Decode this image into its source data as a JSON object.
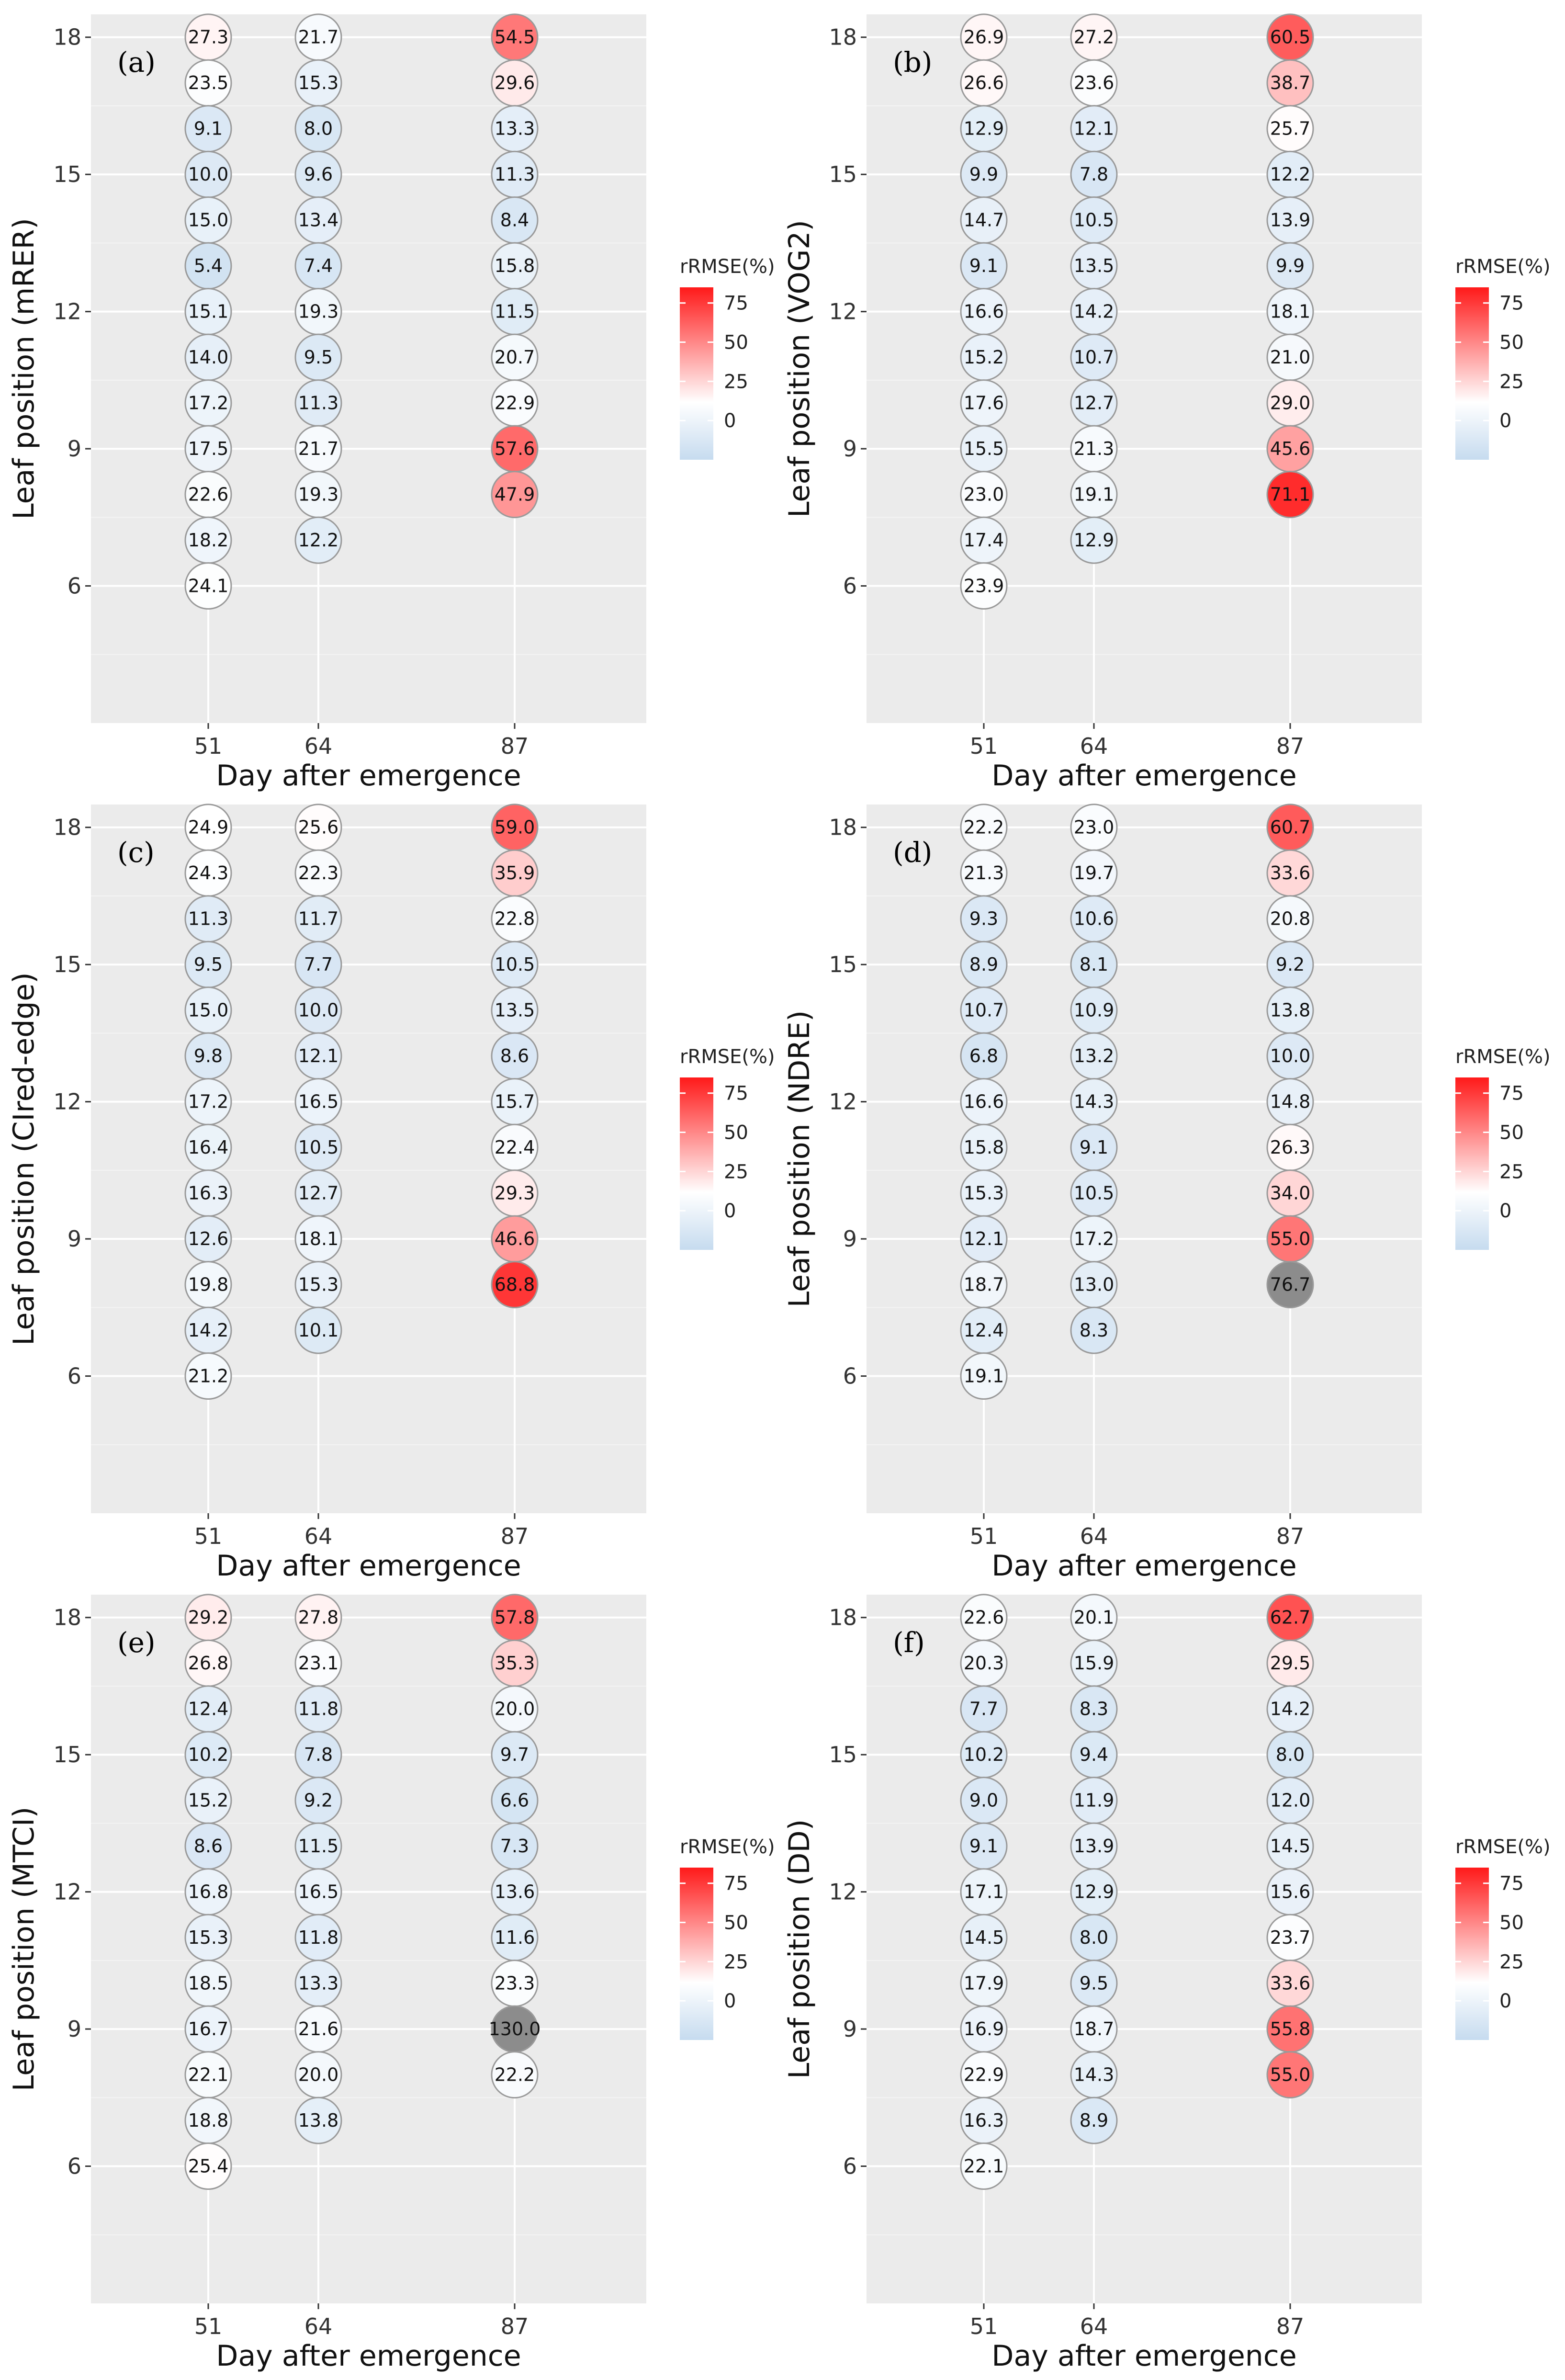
{
  "figure": {
    "common": {
      "xlabel": "Day after emergence",
      "legend_title": "rRMSE(%)",
      "legend_ticks": [
        0,
        25,
        50,
        75
      ],
      "legend_tick_labels": [
        "0",
        "25",
        "50",
        "75"
      ],
      "x_tick_labels": [
        "51",
        "64",
        "87"
      ],
      "y_tick_labels": [
        "6",
        "9",
        "12",
        "15",
        "18"
      ]
    },
    "colors": {
      "panel_bg": "#ebebeb",
      "grid_major": "#ffffff",
      "low": "#c6dbef",
      "mid": "#ffffff",
      "high": "#ff1a1a",
      "out_of_range": "#8c8c8c",
      "bubble_stroke": "#9a9a9a"
    }
  },
  "chart_data": [
    {
      "type": "scatter",
      "panel": "(a)",
      "ylabel": "Leaf position (mRER)",
      "x": [
        51,
        64,
        87
      ],
      "ylim": [
        3,
        18.5
      ],
      "color_scale": [
        0,
        75
      ],
      "series": [
        {
          "name": "51",
          "leaf": [
            18,
            17,
            16,
            15,
            14,
            13,
            12,
            11,
            10,
            9,
            8,
            7,
            6
          ],
          "rrmse": [
            27.3,
            23.5,
            9.1,
            10.0,
            15.0,
            5.4,
            15.1,
            14.0,
            17.2,
            17.5,
            22.6,
            18.2,
            24.1
          ]
        },
        {
          "name": "64",
          "leaf": [
            18,
            17,
            16,
            15,
            14,
            13,
            12,
            11,
            10,
            9,
            8,
            7
          ],
          "rrmse": [
            21.7,
            15.3,
            8.0,
            9.6,
            13.4,
            7.4,
            19.3,
            9.5,
            11.3,
            21.7,
            19.3,
            12.2
          ]
        },
        {
          "name": "87",
          "leaf": [
            18,
            17,
            16,
            15,
            14,
            13,
            12,
            11,
            10,
            9,
            8
          ],
          "rrmse": [
            54.5,
            29.6,
            13.3,
            11.3,
            8.4,
            15.8,
            11.5,
            20.7,
            22.9,
            57.6,
            47.9
          ]
        }
      ]
    },
    {
      "type": "scatter",
      "panel": "(b)",
      "ylabel": "Leaf position (VOG2)",
      "x": [
        51,
        64,
        87
      ],
      "ylim": [
        3,
        18.5
      ],
      "color_scale": [
        0,
        75
      ],
      "series": [
        {
          "name": "51",
          "leaf": [
            18,
            17,
            16,
            15,
            14,
            13,
            12,
            11,
            10,
            9,
            8,
            7,
            6
          ],
          "rrmse": [
            26.9,
            26.6,
            12.9,
            9.9,
            14.7,
            9.1,
            16.6,
            15.2,
            17.6,
            15.5,
            23.0,
            17.4,
            23.9
          ]
        },
        {
          "name": "64",
          "leaf": [
            18,
            17,
            16,
            15,
            14,
            13,
            12,
            11,
            10,
            9,
            8,
            7
          ],
          "rrmse": [
            27.2,
            23.6,
            12.1,
            7.8,
            10.5,
            13.5,
            14.2,
            10.7,
            12.7,
            21.3,
            19.1,
            12.9
          ]
        },
        {
          "name": "87",
          "leaf": [
            18,
            17,
            16,
            15,
            14,
            13,
            12,
            11,
            10,
            9,
            8
          ],
          "rrmse": [
            60.5,
            38.7,
            25.7,
            12.2,
            13.9,
            9.9,
            18.1,
            21.0,
            29.0,
            45.6,
            71.1
          ]
        }
      ]
    },
    {
      "type": "scatter",
      "panel": "(c)",
      "ylabel": "Leaf position (CIred-edge)",
      "x": [
        51,
        64,
        87
      ],
      "ylim": [
        3,
        18.5
      ],
      "color_scale": [
        0,
        75
      ],
      "series": [
        {
          "name": "51",
          "leaf": [
            18,
            17,
            16,
            15,
            14,
            13,
            12,
            11,
            10,
            9,
            8,
            7,
            6
          ],
          "rrmse": [
            24.9,
            24.3,
            11.3,
            9.5,
            15.0,
            9.8,
            17.2,
            16.4,
            16.3,
            12.6,
            19.8,
            14.2,
            21.2
          ]
        },
        {
          "name": "64",
          "leaf": [
            18,
            17,
            16,
            15,
            14,
            13,
            12,
            11,
            10,
            9,
            8,
            7
          ],
          "rrmse": [
            25.6,
            22.3,
            11.7,
            7.7,
            10.0,
            12.1,
            16.5,
            10.5,
            12.7,
            18.1,
            15.3,
            10.1
          ]
        },
        {
          "name": "87",
          "leaf": [
            18,
            17,
            16,
            15,
            14,
            13,
            12,
            11,
            10,
            9,
            8
          ],
          "rrmse": [
            59.0,
            35.9,
            22.8,
            10.5,
            13.5,
            8.6,
            15.7,
            22.4,
            29.3,
            46.6,
            68.8
          ]
        }
      ]
    },
    {
      "type": "scatter",
      "panel": "(d)",
      "ylabel": "Leaf position (NDRE)",
      "x": [
        51,
        64,
        87
      ],
      "ylim": [
        3,
        18.5
      ],
      "color_scale": [
        0,
        75
      ],
      "series": [
        {
          "name": "51",
          "leaf": [
            18,
            17,
            16,
            15,
            14,
            13,
            12,
            11,
            10,
            9,
            8,
            7,
            6
          ],
          "rrmse": [
            22.2,
            21.3,
            9.3,
            8.9,
            10.7,
            6.8,
            16.6,
            15.8,
            15.3,
            12.1,
            18.7,
            12.4,
            19.1
          ]
        },
        {
          "name": "64",
          "leaf": [
            18,
            17,
            16,
            15,
            14,
            13,
            12,
            11,
            10,
            9,
            8,
            7
          ],
          "rrmse": [
            23.0,
            19.7,
            10.6,
            8.1,
            10.9,
            13.2,
            14.3,
            9.1,
            10.5,
            17.2,
            13.0,
            8.3
          ]
        },
        {
          "name": "87",
          "leaf": [
            18,
            17,
            16,
            15,
            14,
            13,
            12,
            11,
            10,
            9,
            8
          ],
          "rrmse": [
            60.7,
            33.6,
            20.8,
            9.2,
            13.8,
            10.0,
            14.8,
            26.3,
            34.0,
            55.0,
            76.7
          ]
        }
      ]
    },
    {
      "type": "scatter",
      "panel": "(e)",
      "ylabel": "Leaf position (MTCI)",
      "x": [
        51,
        64,
        87
      ],
      "ylim": [
        3,
        18.5
      ],
      "color_scale": [
        0,
        75
      ],
      "series": [
        {
          "name": "51",
          "leaf": [
            18,
            17,
            16,
            15,
            14,
            13,
            12,
            11,
            10,
            9,
            8,
            7,
            6
          ],
          "rrmse": [
            29.2,
            26.8,
            12.4,
            10.2,
            15.2,
            8.6,
            16.8,
            15.3,
            18.5,
            16.7,
            22.1,
            18.8,
            25.4
          ]
        },
        {
          "name": "64",
          "leaf": [
            18,
            17,
            16,
            15,
            14,
            13,
            12,
            11,
            10,
            9,
            8,
            7
          ],
          "rrmse": [
            27.8,
            23.1,
            11.8,
            7.8,
            9.2,
            11.5,
            16.5,
            11.8,
            13.3,
            21.6,
            20.0,
            13.8
          ]
        },
        {
          "name": "87",
          "leaf": [
            18,
            17,
            16,
            15,
            14,
            13,
            12,
            11,
            10,
            9,
            8
          ],
          "rrmse": [
            57.8,
            35.3,
            20.0,
            9.7,
            6.6,
            7.3,
            13.6,
            11.6,
            23.3,
            130.0,
            22.2
          ]
        }
      ]
    },
    {
      "type": "scatter",
      "panel": "(f)",
      "ylabel": "Leaf position (DD)",
      "x": [
        51,
        64,
        87
      ],
      "ylim": [
        3,
        18.5
      ],
      "color_scale": [
        0,
        75
      ],
      "series": [
        {
          "name": "51",
          "leaf": [
            18,
            17,
            16,
            15,
            14,
            13,
            12,
            11,
            10,
            9,
            8,
            7,
            6
          ],
          "rrmse": [
            22.6,
            20.3,
            7.7,
            10.2,
            9.0,
            9.1,
            17.1,
            14.5,
            17.9,
            16.9,
            22.9,
            16.3,
            22.1
          ]
        },
        {
          "name": "64",
          "leaf": [
            18,
            17,
            16,
            15,
            14,
            13,
            12,
            11,
            10,
            9,
            8,
            7
          ],
          "rrmse": [
            20.1,
            15.9,
            8.3,
            9.4,
            11.9,
            13.9,
            12.9,
            8.0,
            9.5,
            18.7,
            14.3,
            8.9
          ]
        },
        {
          "name": "87",
          "leaf": [
            18,
            17,
            16,
            15,
            14,
            13,
            12,
            11,
            10,
            9,
            8
          ],
          "rrmse": [
            62.7,
            29.5,
            14.2,
            8.0,
            12.0,
            14.5,
            15.6,
            23.7,
            33.6,
            55.8,
            55.0
          ]
        }
      ]
    }
  ]
}
